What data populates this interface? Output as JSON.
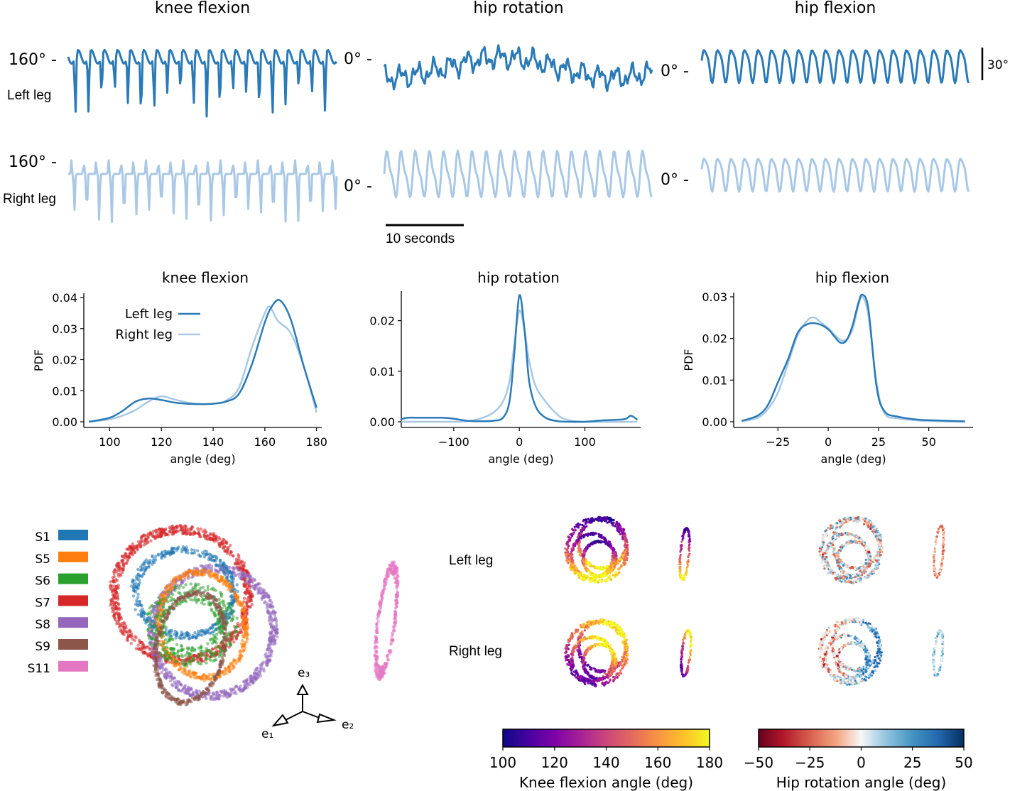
{
  "colors": {
    "left_leg": "#2a7ab8",
    "right_leg": "#a9c8e6",
    "S1": "#1f77b4",
    "S5": "#ff7f0e",
    "S6": "#2ca02c",
    "S7": "#d62728",
    "S8": "#9467bd",
    "S9": "#8c564b",
    "S11": "#e377c2"
  },
  "traces": {
    "titles": [
      "knee flexion",
      "hip rotation",
      "hip flexion"
    ],
    "row_labels": [
      "Left leg",
      "Right leg"
    ],
    "offset_labels": {
      "knee_left": "160° -",
      "knee_right": "160° -",
      "hipr_left": "0° -",
      "hipr_right": "0° -",
      "hipf_left": "0° -",
      "hipf_right": "0° -"
    },
    "vertical_scale_label": "30°",
    "time_scale_label": "10 seconds"
  },
  "legend_subjects": {
    "items": [
      "S1",
      "S5",
      "S6",
      "S7",
      "S8",
      "S9",
      "S11"
    ]
  },
  "embedding": {
    "axis_labels": [
      "e₁",
      "e₂",
      "e₃"
    ],
    "row_labels": [
      "Left leg",
      "Right leg"
    ]
  },
  "chart_data": [
    {
      "type": "line",
      "title": "knee flexion",
      "xlabel": "angle (deg)",
      "ylabel": "PDF",
      "xlim": [
        90,
        182
      ],
      "ylim": [
        0,
        0.04
      ],
      "xticks": [
        100,
        120,
        140,
        160,
        180
      ],
      "yticks": [
        0.0,
        0.01,
        0.02,
        0.03,
        0.04
      ],
      "ytick_labels": [
        "0.00",
        "0.01",
        "0.02",
        "0.03",
        "0.04"
      ],
      "legend": "top-left",
      "series": [
        {
          "name": "Left leg",
          "x": [
            92,
            100,
            105,
            110,
            115,
            120,
            125,
            130,
            135,
            140,
            145,
            150,
            155,
            160,
            163,
            166,
            170,
            175,
            180
          ],
          "y": [
            0.0,
            0.0013,
            0.0035,
            0.0065,
            0.0075,
            0.007,
            0.0062,
            0.0058,
            0.0057,
            0.0058,
            0.0065,
            0.009,
            0.0185,
            0.032,
            0.0375,
            0.039,
            0.033,
            0.018,
            0.0045
          ]
        },
        {
          "name": "Right leg",
          "x": [
            92,
            100,
            105,
            110,
            115,
            120,
            125,
            130,
            135,
            140,
            145,
            150,
            155,
            160,
            162,
            165,
            170,
            175,
            180
          ],
          "y": [
            0.0,
            0.0008,
            0.002,
            0.0038,
            0.0065,
            0.0082,
            0.0072,
            0.0062,
            0.0057,
            0.0058,
            0.0068,
            0.011,
            0.024,
            0.035,
            0.037,
            0.0325,
            0.0285,
            0.018,
            0.003
          ]
        }
      ]
    },
    {
      "type": "line",
      "title": "hip rotation",
      "xlabel": "angle (deg)",
      "ylabel": "",
      "xlim": [
        -180,
        185
      ],
      "ylim": [
        0,
        0.025
      ],
      "xticks": [
        -100,
        0,
        100
      ],
      "xtick_labels": [
        "−100",
        "0",
        "100"
      ],
      "yticks": [
        0.0,
        0.01,
        0.02
      ],
      "ytick_labels": [
        "0.00",
        "0.01",
        "0.02"
      ],
      "series": [
        {
          "name": "Left leg",
          "x": [
            -180,
            -170,
            -150,
            -120,
            -100,
            -80,
            -60,
            -40,
            -25,
            -15,
            -8,
            0,
            8,
            15,
            25,
            40,
            60,
            80,
            100,
            130,
            160,
            170,
            180
          ],
          "y": [
            0.0005,
            0.0008,
            0.0008,
            0.0008,
            0.0006,
            0.0002,
            0.0001,
            0.0002,
            0.0008,
            0.004,
            0.013,
            0.025,
            0.018,
            0.008,
            0.003,
            0.0008,
            0.0001,
            0.0,
            0.0,
            0.0003,
            0.0005,
            0.0012,
            0.0004
          ]
        },
        {
          "name": "Right leg",
          "x": [
            -180,
            -150,
            -100,
            -80,
            -60,
            -40,
            -25,
            -15,
            -8,
            0,
            8,
            15,
            25,
            40,
            55,
            70,
            100,
            180
          ],
          "y": [
            0.0,
            0.0,
            0.0,
            0.0001,
            0.0006,
            0.0018,
            0.004,
            0.008,
            0.015,
            0.022,
            0.018,
            0.012,
            0.007,
            0.004,
            0.0018,
            0.0005,
            0.0,
            0.0
          ]
        }
      ]
    },
    {
      "type": "line",
      "title": "hip flexion",
      "xlabel": "angle (deg)",
      "ylabel": "PDF",
      "xlim": [
        -47,
        72
      ],
      "ylim": [
        0,
        0.03
      ],
      "xticks": [
        -25,
        0,
        25,
        50
      ],
      "xtick_labels": [
        "−25",
        "0",
        "25",
        "50"
      ],
      "yticks": [
        0.0,
        0.01,
        0.02,
        0.03
      ],
      "ytick_labels": [
        "0.00",
        "0.01",
        "0.02",
        "0.03"
      ],
      "series": [
        {
          "name": "Left leg",
          "x": [
            -43,
            -35,
            -30,
            -25,
            -20,
            -15,
            -10,
            -5,
            0,
            3,
            6,
            9,
            12,
            15,
            17,
            20,
            24,
            28,
            35,
            45,
            55,
            68
          ],
          "y": [
            0.0002,
            0.0015,
            0.004,
            0.0095,
            0.015,
            0.0215,
            0.0235,
            0.0235,
            0.0222,
            0.0205,
            0.019,
            0.0195,
            0.023,
            0.0285,
            0.0305,
            0.027,
            0.0085,
            0.0025,
            0.0012,
            0.0005,
            0.0003,
            0.0001
          ]
        },
        {
          "name": "Right leg",
          "x": [
            -43,
            -35,
            -30,
            -25,
            -20,
            -15,
            -10,
            -7,
            -4,
            0,
            4,
            8,
            12,
            15,
            17,
            20,
            24,
            28,
            35,
            45,
            55,
            68
          ],
          "y": [
            0.0001,
            0.001,
            0.003,
            0.007,
            0.014,
            0.021,
            0.0245,
            0.025,
            0.024,
            0.0225,
            0.0205,
            0.0195,
            0.022,
            0.028,
            0.03,
            0.0255,
            0.0095,
            0.002,
            0.0008,
            0.0003,
            0.0001,
            0.0
          ]
        }
      ]
    },
    {
      "type": "heatmap",
      "title": "",
      "colorbar_label": "Knee flexion angle (deg)",
      "range": [
        100,
        180
      ],
      "ticks": [
        100,
        120,
        140,
        160,
        180
      ],
      "colormap": "plasma"
    },
    {
      "type": "heatmap",
      "title": "",
      "colorbar_label": "Hip rotation angle (deg)",
      "range": [
        -50,
        50
      ],
      "ticks": [
        -50,
        -25,
        0,
        25,
        50
      ],
      "tick_labels": [
        "−50",
        "−25",
        "0",
        "25",
        "50"
      ],
      "colormap": "RdBu"
    }
  ]
}
